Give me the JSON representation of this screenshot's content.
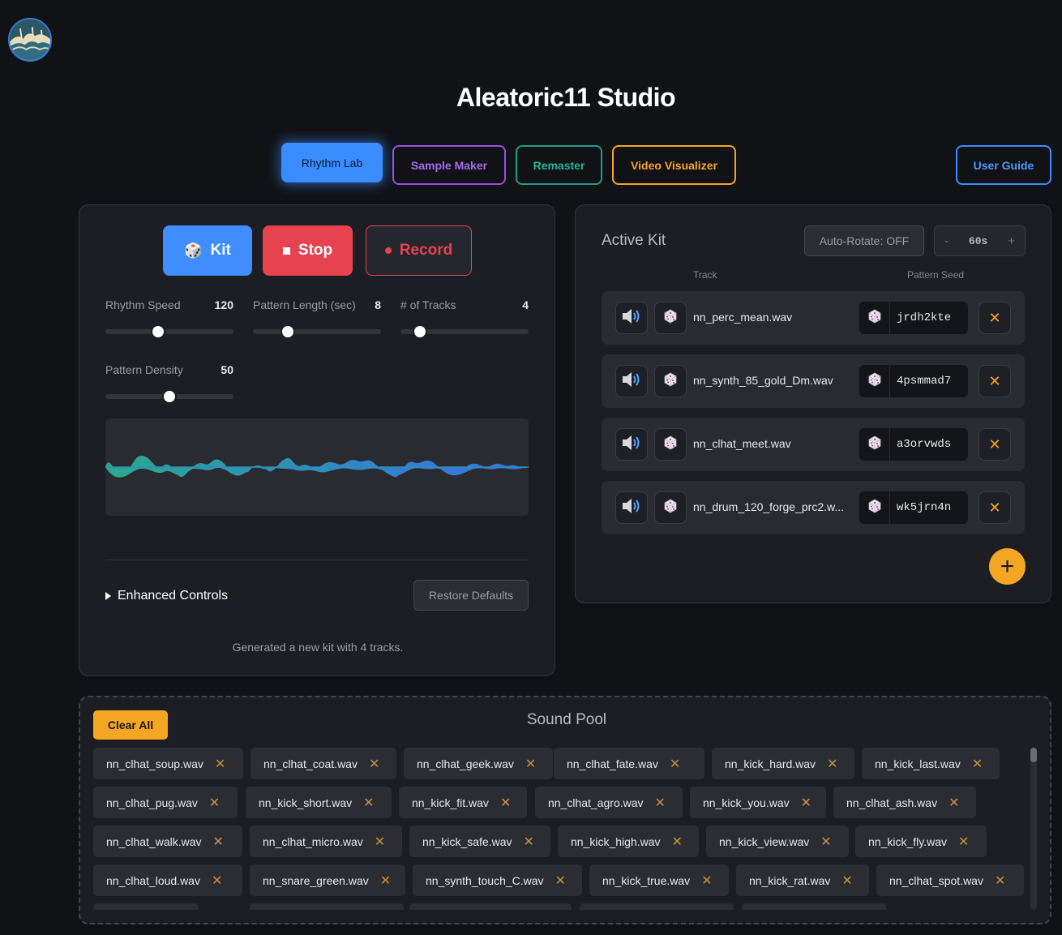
{
  "app": {
    "title": "Aleatoric11 Studio"
  },
  "tabs": [
    {
      "label": "Rhythm Lab"
    },
    {
      "label": "Sample Maker"
    },
    {
      "label": "Remaster"
    },
    {
      "label": "Video Visualizer"
    }
  ],
  "guide": {
    "label": "User Guide"
  },
  "controls": {
    "kit_label": "Kit",
    "stop_label": "Stop",
    "record_label": "Record",
    "sliders": [
      {
        "label": "Rhythm Speed",
        "value": "120",
        "fraction": 0.41
      },
      {
        "label": "Pattern Length (sec)",
        "value": "8",
        "fraction": 0.27
      },
      {
        "label": "# of Tracks",
        "value": "4",
        "fraction": 0.15
      },
      {
        "label": "Pattern Density",
        "value": "50",
        "fraction": 0.5
      }
    ],
    "enhanced_label": "Enhanced Controls",
    "restore_label": "Restore Defaults",
    "status": "Generated a new kit with 4 tracks."
  },
  "kit": {
    "title": "Active Kit",
    "auto_rotate": "Auto-Rotate: OFF",
    "interval": {
      "minus": "-",
      "value": "60s",
      "plus": "+"
    },
    "col_track": "Track",
    "col_seed": "Pattern Seed",
    "tracks": [
      {
        "name": "nn_perc_mean.wav",
        "seed": "jrdh2kte"
      },
      {
        "name": "nn_synth_85_gold_Dm.wav",
        "seed": "4psmmad7"
      },
      {
        "name": "nn_clhat_meet.wav",
        "seed": "a3orvwds"
      },
      {
        "name": "nn_drum_120_forge_prc2.w...",
        "seed": "wk5jrn4n"
      }
    ],
    "add_label": "+"
  },
  "pool": {
    "title": "Sound Pool",
    "clear_label": "Clear All",
    "items": [
      "nn_clhat_soup.wav",
      "nn_clhat_coat.wav",
      "nn_clhat_geek.wav",
      "nn_clhat_fate.wav",
      "nn_kick_hard.wav",
      "nn_kick_last.wav",
      "nn_clhat_pug.wav",
      "nn_kick_short.wav",
      "nn_kick_fit.wav",
      "nn_clhat_agro.wav",
      "nn_kick_you.wav",
      "nn_clhat_ash.wav",
      "nn_clhat_walk.wav",
      "nn_clhat_micro.wav",
      "nn_kick_safe.wav",
      "nn_kick_high.wav",
      "nn_kick_view.wav",
      "nn_kick_fly.wav",
      "nn_clhat_loud.wav",
      "nn_snare_green.wav",
      "nn_synth_touch_C.wav",
      "nn_kick_true.wav",
      "nn_kick_rat.wav",
      "nn_clhat_spot.wav"
    ],
    "remove_glyph": "✕"
  },
  "colors": {
    "accent_blue": "#3b8cff",
    "accent_orange": "#f5a623",
    "danger": "#e7424f"
  },
  "icons": {
    "speaker": "speaker-icon",
    "dice": "dice-icon",
    "close": "close-icon"
  }
}
